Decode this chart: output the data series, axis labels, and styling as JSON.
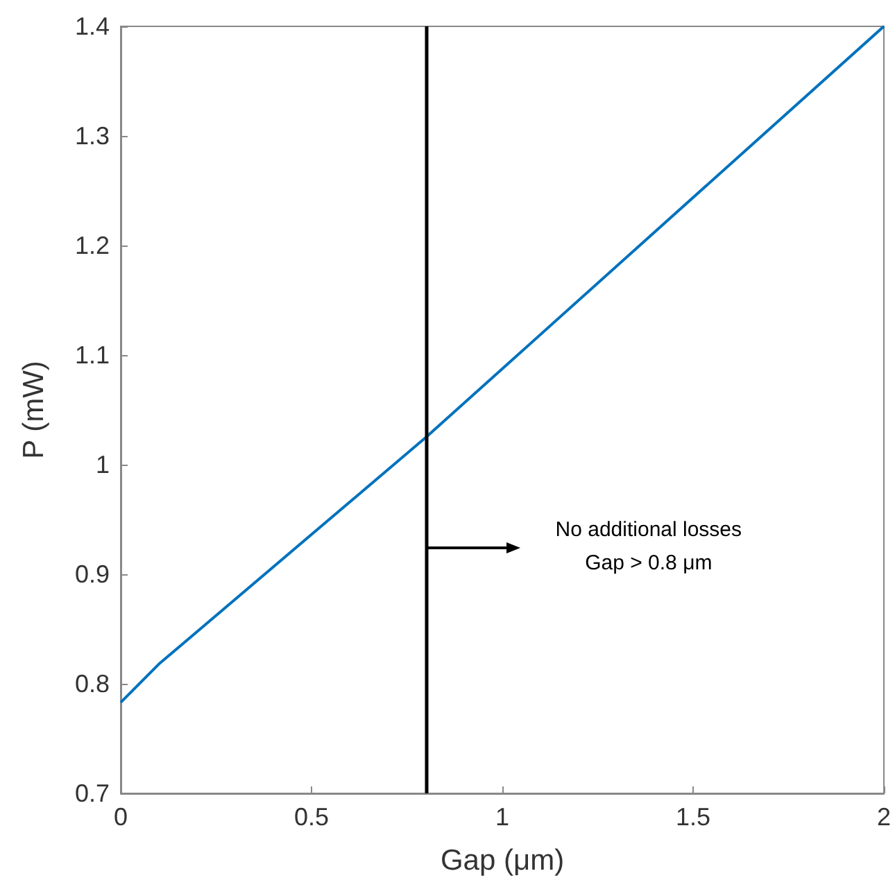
{
  "chart_data": {
    "type": "line",
    "xlabel": "Gap (μm)",
    "ylabel": "P (mW)",
    "x": [
      0,
      0.1,
      0.8,
      2
    ],
    "series": [
      {
        "color": "#0072bd",
        "values": [
          0.783,
          0.818,
          1.025,
          1.4
        ]
      }
    ],
    "xlim": [
      0,
      2
    ],
    "xticks": [
      0,
      0.5,
      1,
      1.5,
      2
    ],
    "ylim": [
      0.7,
      1.4
    ],
    "yticks": [
      0.7,
      0.8,
      0.9,
      1,
      1.1,
      1.2,
      1.3,
      1.4
    ],
    "grid": false,
    "marker": "none",
    "line_style": "solid",
    "ref_lines": [
      {
        "axis": "x",
        "value": 0.8,
        "color": "#000000"
      }
    ],
    "annotations": [
      "No additional losses\nGap > 0.8 μm"
    ]
  }
}
